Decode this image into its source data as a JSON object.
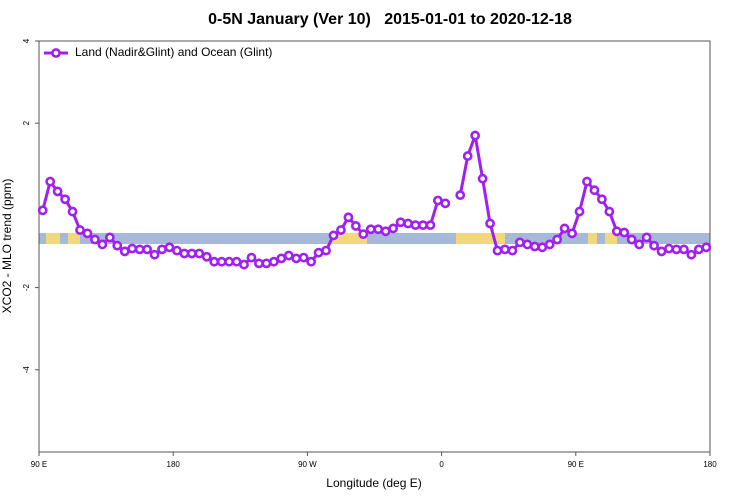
{
  "chart_data": {
    "type": "line",
    "title": "0-5N January (Ver 10)   2015-01-01 to 2020-12-18",
    "x_label": "Longitude (deg E)",
    "y_label": "XCO2 - MLO trend (ppm)",
    "xlim": [
      90,
      540
    ],
    "ylim": [
      -6,
      4
    ],
    "xticks": [
      {
        "value": 90,
        "label": "90 E"
      },
      {
        "value": 180,
        "label": "180"
      },
      {
        "value": 270,
        "label": "90 W"
      },
      {
        "value": 360,
        "label": "0"
      },
      {
        "value": 450,
        "label": "90 E"
      },
      {
        "value": 540,
        "label": "180"
      }
    ],
    "yticks": [
      -4,
      -2,
      2,
      4
    ],
    "grid": false,
    "legend": "top-left",
    "x": [
      92.5,
      97.5,
      102.5,
      107.5,
      112.5,
      117.5,
      122.5,
      127.5,
      132.5,
      137.5,
      142.5,
      147.5,
      152.5,
      157.5,
      162.5,
      167.5,
      172.5,
      177.5,
      182.5,
      187.5,
      192.5,
      197.5,
      202.5,
      207.5,
      212.5,
      217.5,
      222.5,
      227.5,
      232.5,
      237.5,
      242.5,
      247.5,
      252.5,
      257.5,
      262.5,
      267.5,
      272.5,
      277.5,
      282.5,
      287.5,
      292.5,
      297.5,
      302.5,
      307.5,
      312.5,
      317.5,
      322.5,
      327.5,
      332.5,
      337.5,
      342.5,
      347.5,
      352.5,
      357.5,
      362.5,
      367.5,
      372.5,
      377.5,
      382.5,
      387.5,
      392.5,
      397.5,
      402.5,
      407.5,
      412.5,
      417.5,
      422.5,
      427.5,
      432.5,
      437.5,
      442.5,
      447.5,
      452.5,
      457.5,
      462.5,
      467.5,
      472.5,
      477.5,
      482.5,
      487.5,
      492.5,
      497.5,
      502.5,
      507.5,
      512.5,
      517.5,
      522.5,
      527.5,
      532.5,
      537.5
    ],
    "series": [
      {
        "name": "Land (Nadir&Glint) and Ocean (Glint)",
        "color": "#a020f0",
        "values": [
          -0.12,
          0.58,
          0.34,
          0.15,
          -0.15,
          -0.6,
          -0.68,
          -0.83,
          -0.95,
          -0.78,
          -0.98,
          -1.12,
          -1.05,
          -1.07,
          -1.07,
          -1.2,
          -1.07,
          -1.02,
          -1.1,
          -1.17,
          -1.17,
          -1.17,
          -1.25,
          -1.37,
          -1.37,
          -1.37,
          -1.37,
          -1.44,
          -1.27,
          -1.41,
          -1.41,
          -1.37,
          -1.29,
          -1.22,
          -1.29,
          -1.27,
          -1.37,
          -1.15,
          -1.1,
          -0.73,
          -0.6,
          -0.29,
          -0.5,
          -0.7,
          -0.58,
          -0.58,
          -0.63,
          -0.56,
          -0.41,
          -0.44,
          -0.48,
          -0.48,
          -0.48,
          0.12,
          0.05,
          null,
          0.25,
          1.2,
          1.7,
          0.65,
          -0.44,
          -1.1,
          -1.07,
          -1.1,
          -0.9,
          -0.95,
          -1.0,
          -1.02,
          -0.95,
          -0.83,
          -0.56,
          -0.68,
          -0.15,
          0.58,
          0.37,
          0.15,
          -0.15,
          -0.63,
          -0.66,
          -0.83,
          -0.95,
          -0.78,
          -0.98,
          -1.12,
          -1.05,
          -1.07,
          -1.07,
          -1.2,
          -1.07,
          -1.02
        ]
      }
    ]
  }
}
